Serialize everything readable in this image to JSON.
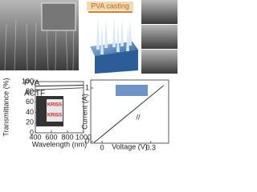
{
  "annotations": {
    "process": "PVA casting",
    "inset_text": "KRISS"
  },
  "chart_data": [
    {
      "type": "line",
      "x_label": "Wavelength (nm)",
      "y_label": "Transmittance (%)",
      "xlim": [
        400,
        1000
      ],
      "ylim": [
        0,
        100
      ],
      "xticks": [
        400,
        600,
        800,
        1000
      ],
      "yticks": [
        0,
        20,
        40,
        60,
        80,
        100
      ],
      "series": [
        {
          "name": "PVA",
          "color": "#222222",
          "x": [
            400,
            1000
          ],
          "values": [
            91,
            93
          ]
        },
        {
          "name": "ACTF",
          "color": "#555555",
          "x": [
            400,
            1000
          ],
          "values": [
            84,
            88
          ]
        }
      ]
    },
    {
      "type": "line",
      "x_label": "Voltage (V)",
      "y_label": "Current (A)",
      "xlim": [
        -0.07,
        0.41
      ],
      "ylim": [
        -0.03,
        1.15
      ],
      "xticks": [
        0,
        0.3
      ],
      "yticks": [
        0,
        1
      ],
      "series": [
        {
          "color": "#333333",
          "x": [
            -0.05,
            0.38
          ],
          "values": [
            -0.02,
            1.05
          ]
        }
      ]
    }
  ]
}
